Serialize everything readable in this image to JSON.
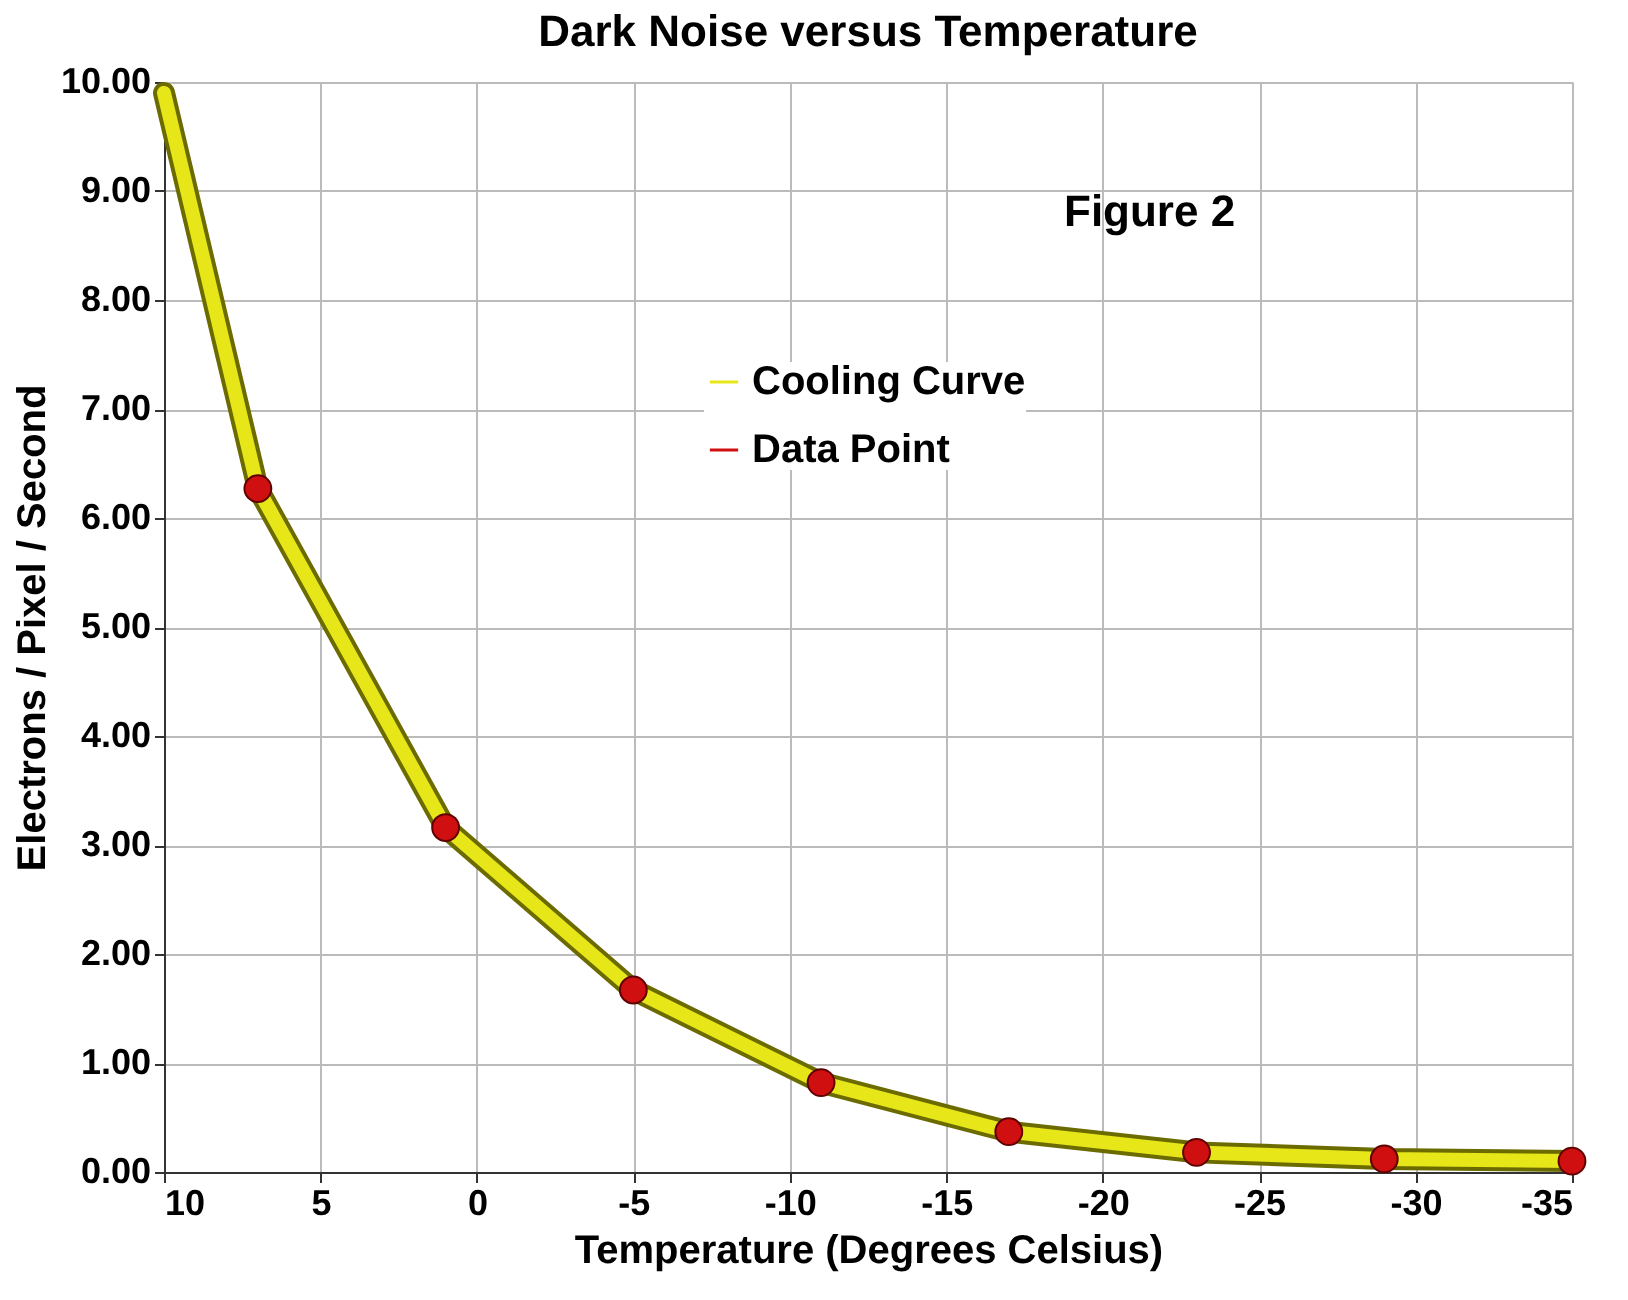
{
  "chart_data": {
    "type": "line",
    "title": "Dark Noise versus Temperature",
    "xlabel": "Temperature (Degrees Celsius)",
    "ylabel": "Electrons / Pixel / Second",
    "annotations": [
      "Figure 2"
    ],
    "series": [
      {
        "name": "Cooling Curve",
        "type": "line",
        "line_style": "solid",
        "color": "#e6e619",
        "x": [
          10,
          7,
          1,
          -5,
          -11,
          -17,
          -23,
          -29,
          -35
        ],
        "values": [
          9.9,
          6.27,
          3.16,
          1.67,
          0.82,
          0.37,
          0.18,
          0.12,
          0.1
        ]
      },
      {
        "name": "Data Point",
        "type": "scatter",
        "marker": "circle",
        "color": "#d01010",
        "x": [
          7,
          1,
          -5,
          -11,
          -17,
          -23,
          -29,
          -35
        ],
        "values": [
          6.27,
          3.16,
          1.67,
          0.82,
          0.37,
          0.18,
          0.12,
          0.1
        ]
      }
    ],
    "xlim": [
      10,
      -35
    ],
    "xticks": [
      10,
      5,
      0,
      -5,
      -10,
      -15,
      -20,
      -25,
      -30,
      -35
    ],
    "ylim": [
      0,
      10
    ],
    "yticks": [
      {
        "value": 0,
        "label": "0.00"
      },
      {
        "value": 1,
        "label": "1.00"
      },
      {
        "value": 2,
        "label": "2.00"
      },
      {
        "value": 3,
        "label": "3.00"
      },
      {
        "value": 4,
        "label": "4.00"
      },
      {
        "value": 5,
        "label": "5.00"
      },
      {
        "value": 6,
        "label": "6.00"
      },
      {
        "value": 7,
        "label": "7.00"
      },
      {
        "value": 8,
        "label": "8.00"
      },
      {
        "value": 9,
        "label": "9.00"
      },
      {
        "value": 10,
        "label": "10.00"
      }
    ],
    "grid": true,
    "legend": "top"
  }
}
